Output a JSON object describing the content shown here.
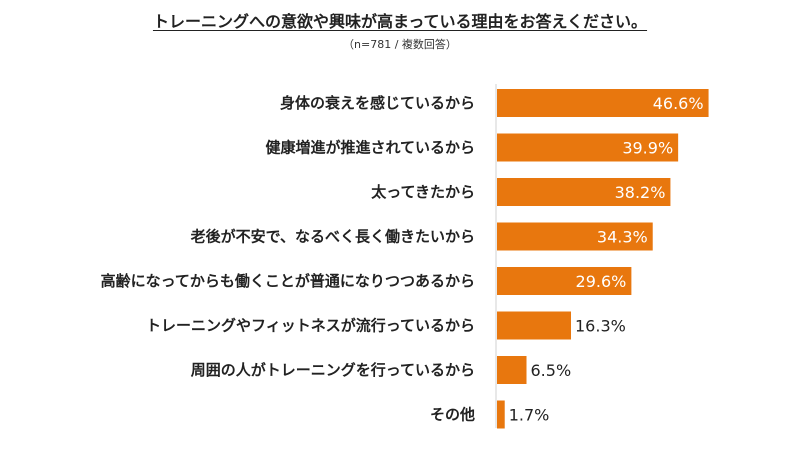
{
  "chart_data": {
    "type": "bar",
    "orientation": "horizontal",
    "title": "トレーニングへの意欲や興味が高まっている理由をお答えください。",
    "subtitle": "（n=781 / 複数回答）",
    "categories": [
      "身体の衰えを感じているから",
      "健康増進が推進されているから",
      "太ってきたから",
      "老後が不安で、なるべく長く働きたいから",
      "高齢になってからも働くことが普通になりつつあるから",
      "トレーニングやフィットネスが流行っているから",
      "周囲の人がトレーニングを行っているから",
      "その他"
    ],
    "values": [
      46.6,
      39.9,
      38.2,
      34.3,
      29.6,
      16.3,
      6.5,
      1.7
    ],
    "value_labels": [
      "46.6%",
      "39.9%",
      "38.2%",
      "34.3%",
      "29.6%",
      "16.3%",
      "6.5%",
      "1.7%"
    ],
    "xlim": [
      0,
      100
    ],
    "grid": false,
    "legend": "none",
    "bar_color": "#e8770e"
  }
}
